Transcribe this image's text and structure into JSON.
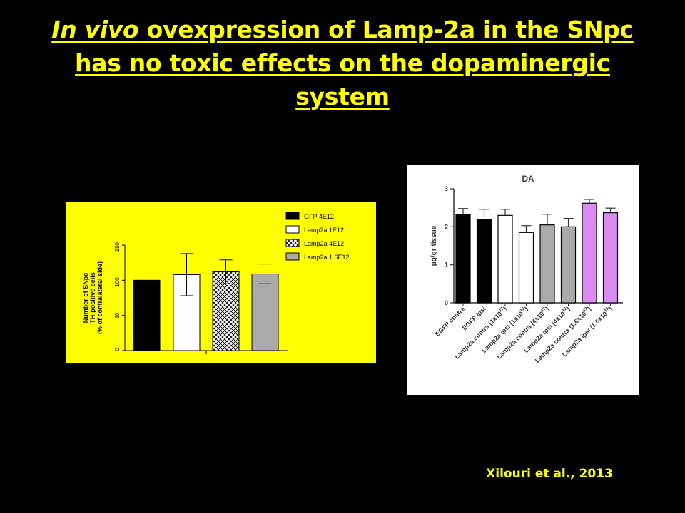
{
  "title": {
    "italic": "In vivo",
    "rest": " ovexpression of Lamp-2a in the SNpc has no toxic effects on the dopaminergic system"
  },
  "citation": "Xilouri et al., 2013",
  "colors": {
    "background": "#000000",
    "title": "#ffff00",
    "left_panel": "#ffff00",
    "lamp2a_1_6": "#aaaaaa",
    "lamp2a_1_6e13": "#d98cf2"
  },
  "chart_data": [
    {
      "type": "bar",
      "title": "",
      "ylabel_lines": [
        "Number of SNpc",
        "TH-positive cells",
        "(% of contralateral side)"
      ],
      "xlabel": "",
      "ylim": [
        0,
        150
      ],
      "yticks": [
        "0",
        "50",
        "100",
        "150"
      ],
      "legend_position": "top-right",
      "series": [
        {
          "name": "GFP 4E12",
          "value": 100,
          "error": 0,
          "fill": "solid-black"
        },
        {
          "name": "Lamp2a 1E12",
          "value": 108,
          "error": 30,
          "fill": "white"
        },
        {
          "name": "Lamp2a 4E12",
          "value": 112,
          "error": 17,
          "fill": "crosshatch"
        },
        {
          "name": "Lamp2a 1.6E12",
          "value": 109,
          "error": 14,
          "fill": "grey"
        }
      ]
    },
    {
      "type": "bar",
      "title": "DA",
      "ylabel": "μg/gr tissue",
      "ylim": [
        0,
        3
      ],
      "yticks": [
        "0",
        "1",
        "2",
        "3"
      ],
      "bars": [
        {
          "label": "EGFP contra",
          "value": 2.32,
          "error": 0.16,
          "fill": "#000000"
        },
        {
          "label": "EGFP ipsi",
          "value": 2.2,
          "error": 0.26,
          "fill": "#000000"
        },
        {
          "label": "Lamp2a contra (1x10",
          "sup": "12",
          "close": ")",
          "value": 2.3,
          "error": 0.16,
          "fill": "#ffffff"
        },
        {
          "label": "Lamp2a ipsi (1x10",
          "sup": "12",
          "close": ")",
          "value": 1.85,
          "error": 0.18,
          "fill": "#ffffff"
        },
        {
          "label": "Lamp2a contra (4x10",
          "sup": "12",
          "close": ")",
          "value": 2.05,
          "error": 0.28,
          "fill": "#aaaaaa"
        },
        {
          "label": "Lamp2a ipsi (4x10",
          "sup": "12",
          "close": ")",
          "value": 2.0,
          "error": 0.22,
          "fill": "#aaaaaa"
        },
        {
          "label": "Lamp2a contra (1.6x10",
          "sup": "13",
          "close": ")",
          "value": 2.62,
          "error": 0.1,
          "fill": "#d98cf2"
        },
        {
          "label": "Lamp2a ipsi (1.6x10",
          "sup": "13",
          "close": ")",
          "value": 2.37,
          "error": 0.12,
          "fill": "#d98cf2"
        }
      ]
    }
  ]
}
